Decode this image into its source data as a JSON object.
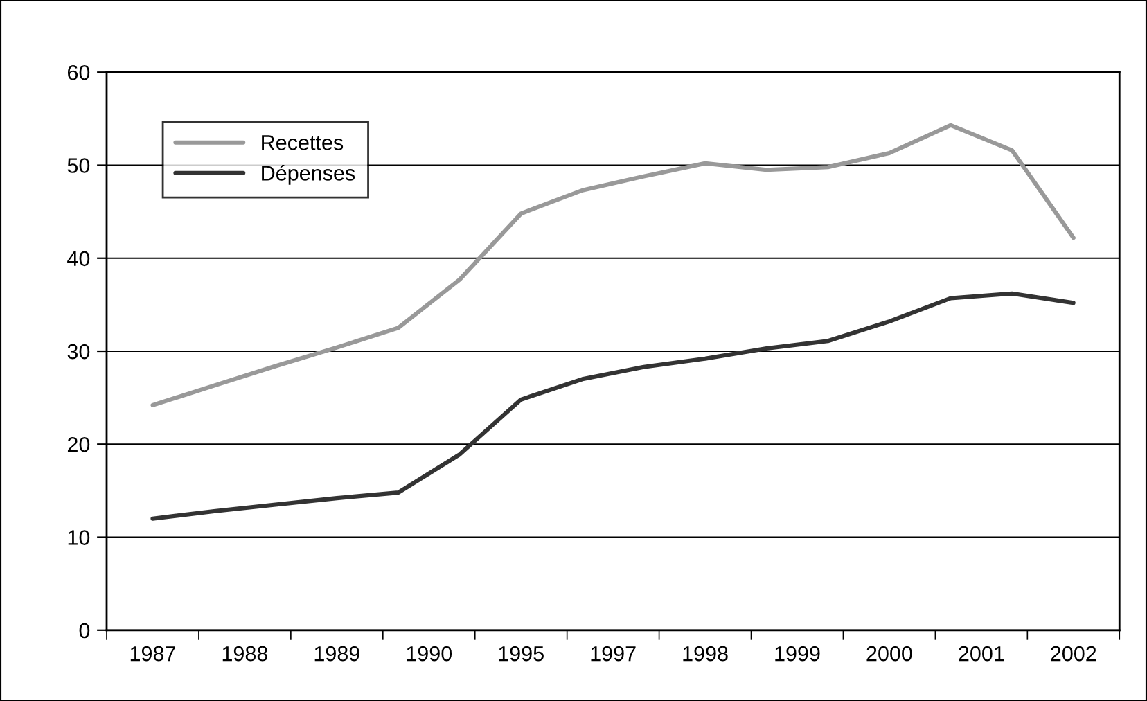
{
  "chart_data": {
    "type": "line",
    "categories": [
      "1987",
      null,
      null,
      "1988",
      null,
      null,
      "1989",
      null,
      null,
      "1990",
      null,
      null,
      "1995",
      null,
      null,
      "1997",
      null,
      null,
      "1998",
      null,
      null,
      "1999",
      null,
      null,
      "2000",
      null,
      null,
      "2001",
      null,
      null,
      "2002"
    ],
    "series": [
      {
        "name": "Recettes",
        "color": "#999999",
        "values": [
          24.2,
          null,
          26.3,
          null,
          28.4,
          null,
          30.4,
          null,
          32.5,
          null,
          37.7,
          null,
          44.8,
          null,
          47.3,
          null,
          48.8,
          null,
          50.2,
          null,
          49.5,
          null,
          49.8,
          null,
          51.3,
          null,
          54.3,
          null,
          51.6,
          null,
          42.2
        ]
      },
      {
        "name": "Dépenses",
        "color": "#333333",
        "values": [
          12.0,
          null,
          12.8,
          null,
          13.5,
          null,
          14.2,
          null,
          14.8,
          null,
          18.9,
          null,
          24.8,
          null,
          27.0,
          null,
          28.3,
          null,
          29.2,
          null,
          30.3,
          null,
          31.1,
          null,
          33.2,
          null,
          35.7,
          null,
          36.2,
          null,
          35.2
        ]
      }
    ],
    "ylim": [
      0,
      60
    ],
    "yticks": [
      0,
      10,
      20,
      30,
      40,
      50,
      60
    ],
    "grid": "y",
    "legend": "top left",
    "marker": "none",
    "line_style": "solid"
  }
}
